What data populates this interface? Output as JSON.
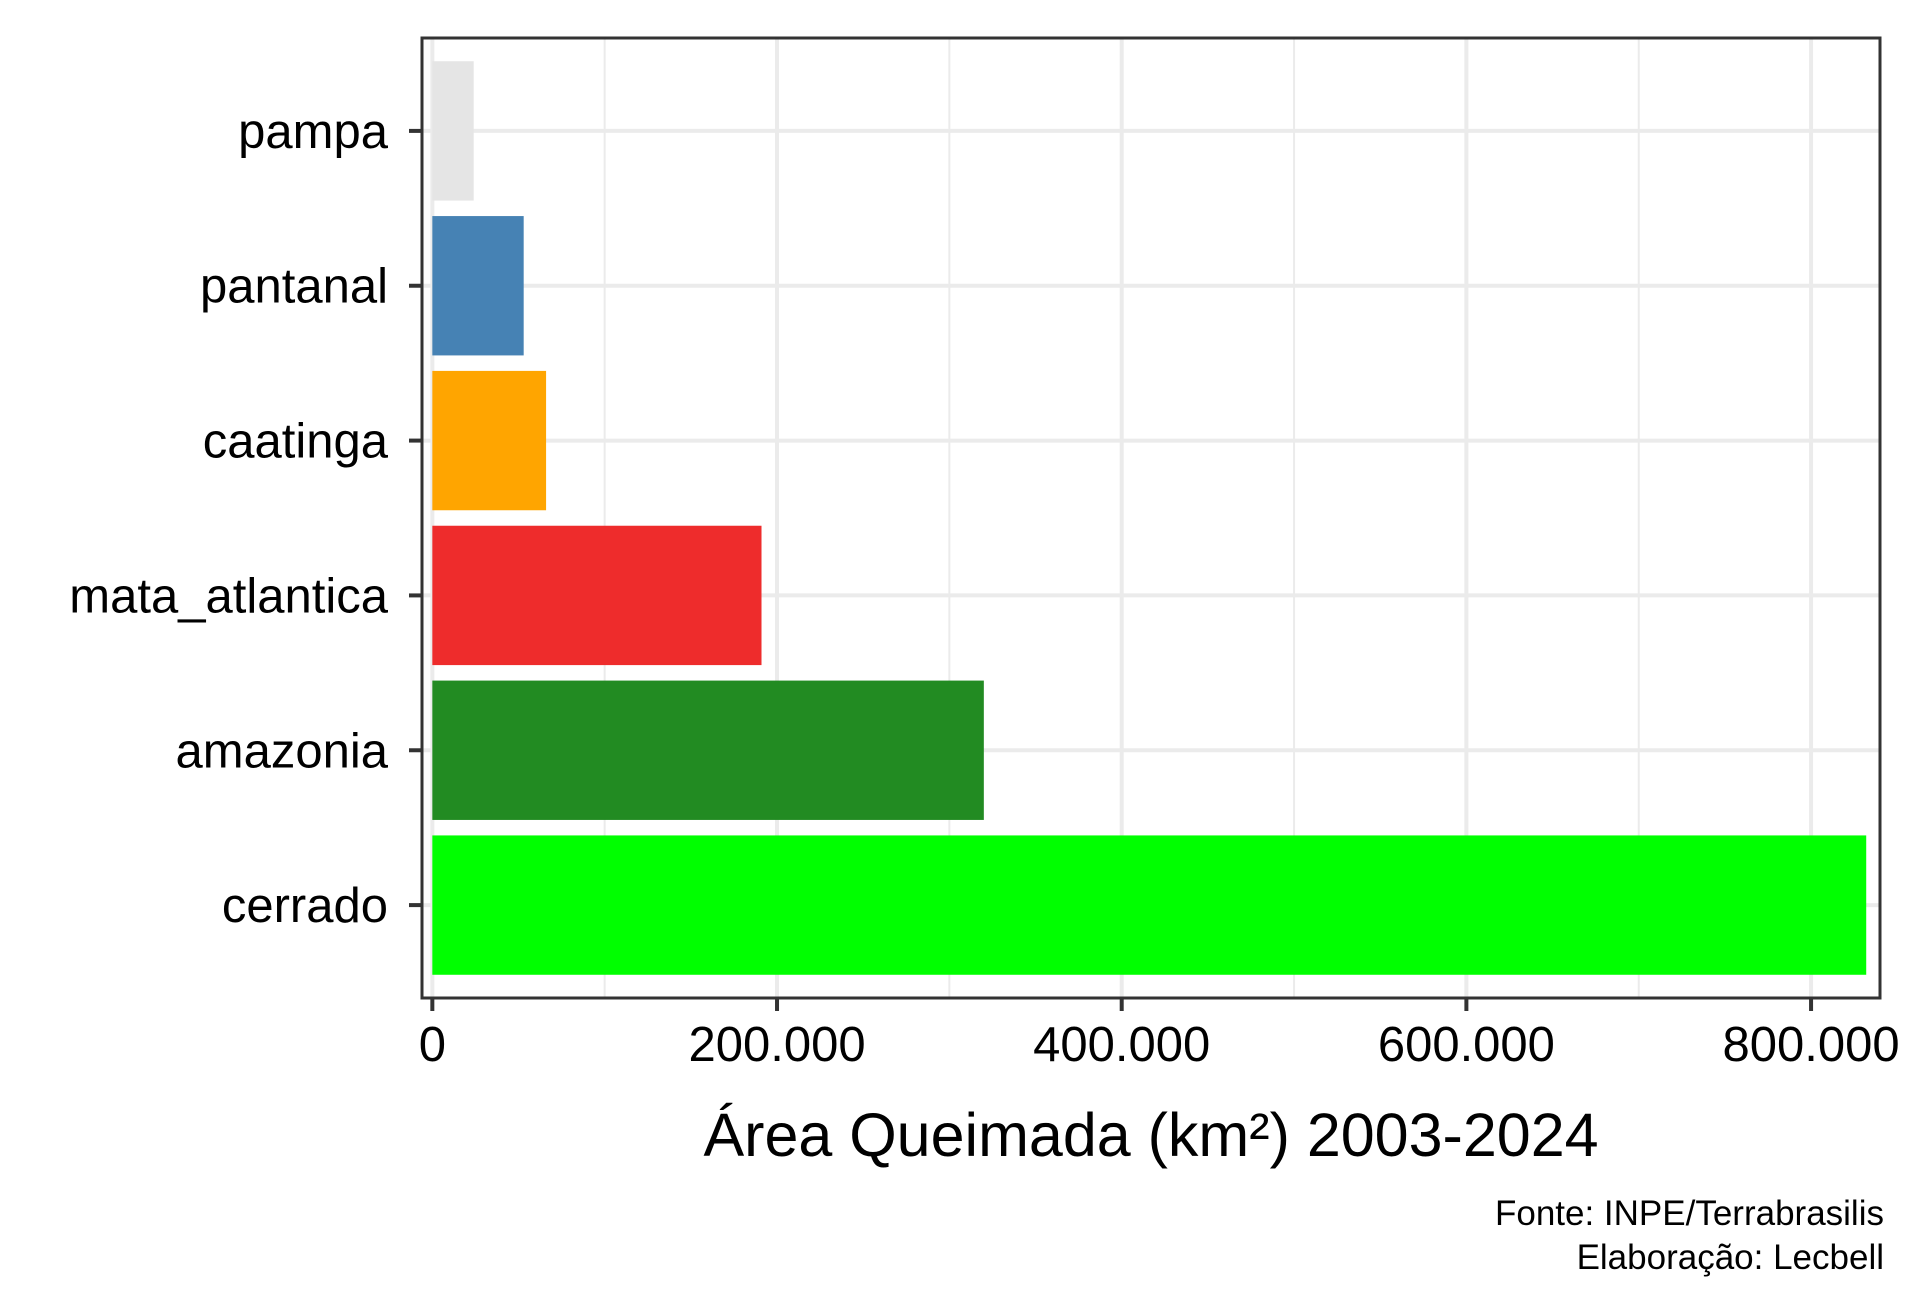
{
  "chart_data": {
    "type": "bar",
    "orientation": "horizontal",
    "categories": [
      "pampa",
      "pantanal",
      "caatinga",
      "mata_atlantica",
      "amazonia",
      "cerrado"
    ],
    "values": [
      24000,
      53000,
      66000,
      191000,
      320000,
      832000
    ],
    "colors": [
      "#e5e5e5",
      "#4682b4",
      "#ffa500",
      "#ee2c2c",
      "#228b22",
      "#00ff00"
    ],
    "xlabel": "Área Queimada (km²) 2003-2024",
    "ylabel": "",
    "xlim": [
      -6000,
      840000
    ],
    "xticks": [
      0,
      200000,
      400000,
      600000,
      800000
    ],
    "xtick_labels": [
      "0",
      "200.000",
      "400.000",
      "600.000",
      "800.000"
    ],
    "grid": true
  },
  "caption": {
    "source": "Fonte: INPE/Terrabrasilis",
    "author": "Elaboração: Lecbell"
  }
}
